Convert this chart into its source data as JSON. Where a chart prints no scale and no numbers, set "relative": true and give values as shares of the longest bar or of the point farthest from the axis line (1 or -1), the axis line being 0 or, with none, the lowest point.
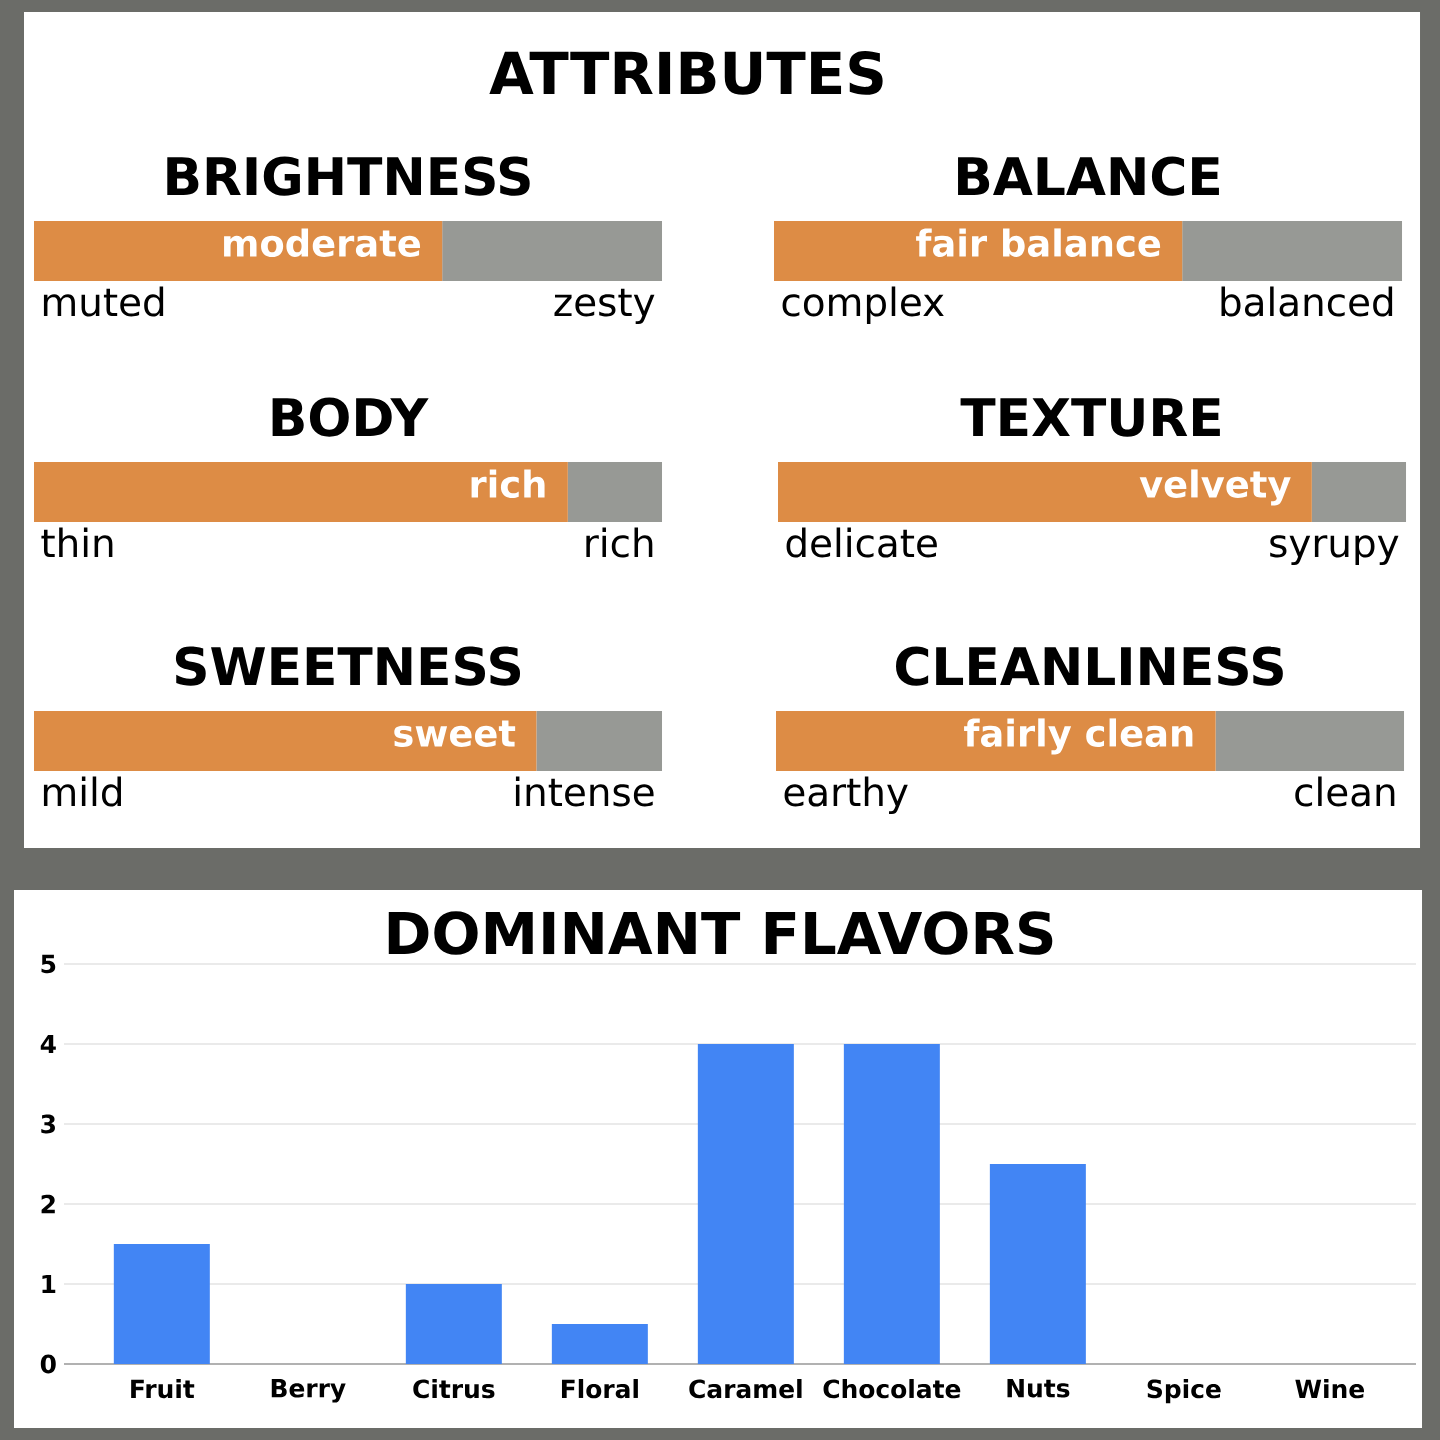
{
  "chart_data": [
    {
      "type": "other",
      "title": "ATTRIBUTES"
    },
    {
      "type": "bar",
      "title": "BRIGHTNESS",
      "orientation": "horizontal",
      "stacked": true,
      "relative": true,
      "categories": [
        null
      ],
      "series": [
        {
          "color": "#dd8c45",
          "values": [
            0.65
          ]
        },
        {
          "color": "#979995",
          "values": [
            0.35
          ]
        }
      ],
      "annotations": [
        {
          "text": "moderate",
          "x": 0.65
        },
        "muted",
        "zesty"
      ]
    },
    {
      "type": "bar",
      "title": "BALANCE",
      "orientation": "horizontal",
      "stacked": true,
      "relative": true,
      "categories": [
        null
      ],
      "series": [
        {
          "color": "#dd8c45",
          "values": [
            0.65
          ]
        },
        {
          "color": "#979995",
          "values": [
            0.35
          ]
        }
      ],
      "annotations": [
        {
          "text": "fair balance",
          "x": 0.65
        },
        "complex",
        "balanced"
      ]
    },
    {
      "type": "bar",
      "title": "BODY",
      "orientation": "horizontal",
      "stacked": true,
      "relative": true,
      "categories": [
        null
      ],
      "series": [
        {
          "color": "#dd8c45",
          "values": [
            0.85
          ]
        },
        {
          "color": "#979995",
          "values": [
            0.15
          ]
        }
      ],
      "annotations": [
        {
          "text": "rich",
          "x": 0.85
        },
        "thin",
        "rich"
      ]
    },
    {
      "type": "bar",
      "title": "TEXTURE",
      "orientation": "horizontal",
      "stacked": true,
      "relative": true,
      "categories": [
        null
      ],
      "series": [
        {
          "color": "#dd8c45",
          "values": [
            0.85
          ]
        },
        {
          "color": "#979995",
          "values": [
            0.15
          ]
        }
      ],
      "annotations": [
        {
          "text": "velvety",
          "x": 0.85
        },
        "delicate",
        "syrupy"
      ]
    },
    {
      "type": "bar",
      "title": "SWEETNESS",
      "orientation": "horizontal",
      "stacked": true,
      "relative": true,
      "categories": [
        null
      ],
      "series": [
        {
          "color": "#dd8c45",
          "values": [
            0.8
          ]
        },
        {
          "color": "#979995",
          "values": [
            0.2
          ]
        }
      ],
      "annotations": [
        {
          "text": "sweet",
          "x": 0.8
        },
        "mild",
        "intense"
      ]
    },
    {
      "type": "bar",
      "title": "CLEANLINESS",
      "orientation": "horizontal",
      "stacked": true,
      "relative": true,
      "categories": [
        null
      ],
      "series": [
        {
          "color": "#dd8c45",
          "values": [
            0.7
          ]
        },
        {
          "color": "#979995",
          "values": [
            0.3
          ]
        }
      ],
      "annotations": [
        {
          "text": "fairly clean",
          "x": 0.7
        },
        "earthy",
        "clean"
      ]
    },
    {
      "type": "bar",
      "title": "DOMINANT FLAVORS",
      "categories": [
        "Fruit",
        "Berry",
        "Citrus",
        "Floral",
        "Caramel",
        "Chocolate",
        "Nuts",
        "Spice",
        "Wine"
      ],
      "values": [
        1.5,
        0,
        1,
        0.5,
        4,
        4,
        2.5,
        0,
        0
      ],
      "color": "#4285f4",
      "ylim": [
        0,
        5
      ],
      "yticks": [
        0,
        1,
        2,
        3,
        4,
        5
      ],
      "grid": "y"
    }
  ]
}
